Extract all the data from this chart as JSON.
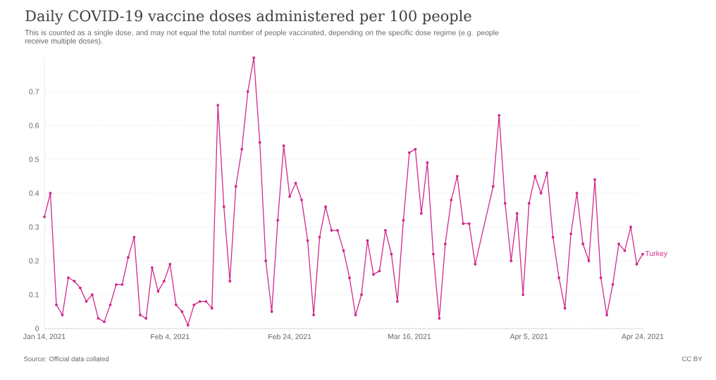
{
  "chart_data": {
    "type": "line",
    "title": "Daily COVID-19 vaccine doses administered per 100 people",
    "subtitle": "This is counted as a single dose, and may not equal the total number of people vaccinated, depending on the specific dose regime (e.g. people receive multiple doses).",
    "x": [
      "2021-01-14",
      "2021-01-15",
      "2021-01-16",
      "2021-01-17",
      "2021-01-18",
      "2021-01-19",
      "2021-01-20",
      "2021-01-21",
      "2021-01-22",
      "2021-01-23",
      "2021-01-24",
      "2021-01-25",
      "2021-01-26",
      "2021-01-27",
      "2021-01-28",
      "2021-01-29",
      "2021-01-30",
      "2021-01-31",
      "2021-02-01",
      "2021-02-02",
      "2021-02-03",
      "2021-02-04",
      "2021-02-05",
      "2021-02-06",
      "2021-02-07",
      "2021-02-08",
      "2021-02-09",
      "2021-02-10",
      "2021-02-11",
      "2021-02-12",
      "2021-02-13",
      "2021-02-14",
      "2021-02-15",
      "2021-02-16",
      "2021-02-17",
      "2021-02-18",
      "2021-02-19",
      "2021-02-20",
      "2021-02-21",
      "2021-02-22",
      "2021-02-23",
      "2021-02-24",
      "2021-02-25",
      "2021-02-26",
      "2021-02-27",
      "2021-02-28",
      "2021-03-01",
      "2021-03-02",
      "2021-03-03",
      "2021-03-04",
      "2021-03-05",
      "2021-03-06",
      "2021-03-07",
      "2021-03-08",
      "2021-03-09",
      "2021-03-10",
      "2021-03-11",
      "2021-03-12",
      "2021-03-13",
      "2021-03-14",
      "2021-03-15",
      "2021-03-16",
      "2021-03-17",
      "2021-03-18",
      "2021-03-19",
      "2021-03-20",
      "2021-03-21",
      "2021-03-22",
      "2021-03-23",
      "2021-03-24",
      "2021-03-25",
      "2021-03-26",
      "2021-03-27",
      "2021-03-30",
      "2021-03-31",
      "2021-04-01",
      "2021-04-02",
      "2021-04-03",
      "2021-04-04",
      "2021-04-05",
      "2021-04-06",
      "2021-04-07",
      "2021-04-08",
      "2021-04-09",
      "2021-04-10",
      "2021-04-11",
      "2021-04-12",
      "2021-04-13",
      "2021-04-14",
      "2021-04-15",
      "2021-04-16",
      "2021-04-17",
      "2021-04-18",
      "2021-04-19",
      "2021-04-20",
      "2021-04-21",
      "2021-04-22",
      "2021-04-23",
      "2021-04-24"
    ],
    "series": [
      {
        "name": "Turkey",
        "color": "#d02a8c",
        "values": [
          0.33,
          0.4,
          0.07,
          0.04,
          0.15,
          0.14,
          0.12,
          0.08,
          0.1,
          0.03,
          0.02,
          0.07,
          0.13,
          0.13,
          0.21,
          0.27,
          0.04,
          0.03,
          0.18,
          0.11,
          0.14,
          0.19,
          0.07,
          0.05,
          0.01,
          0.07,
          0.08,
          0.08,
          0.06,
          0.66,
          0.36,
          0.14,
          0.42,
          0.53,
          0.7,
          0.8,
          0.55,
          0.2,
          0.05,
          0.32,
          0.54,
          0.39,
          0.43,
          0.38,
          0.26,
          0.04,
          0.27,
          0.36,
          0.29,
          0.29,
          0.23,
          0.15,
          0.04,
          0.1,
          0.26,
          0.16,
          0.17,
          0.29,
          0.22,
          0.08,
          0.32,
          0.52,
          0.53,
          0.34,
          0.49,
          0.22,
          0.03,
          0.25,
          0.38,
          0.45,
          0.31,
          0.31,
          0.19,
          0.42,
          0.63,
          0.37,
          0.2,
          0.34,
          0.1,
          0.37,
          0.45,
          0.4,
          0.46,
          0.27,
          0.15,
          0.06,
          0.28,
          0.4,
          0.25,
          0.2,
          0.44,
          0.15,
          0.04,
          0.13,
          0.25,
          0.23,
          0.3,
          0.19,
          0.22
        ]
      }
    ],
    "xlim": [
      "2021-01-14",
      "2021-04-24"
    ],
    "xticks": [
      {
        "value": "2021-01-14",
        "label": "Jan 14, 2021"
      },
      {
        "value": "2021-02-04",
        "label": "Feb 4, 2021"
      },
      {
        "value": "2021-02-24",
        "label": "Feb 24, 2021"
      },
      {
        "value": "2021-03-16",
        "label": "Mar 16, 2021"
      },
      {
        "value": "2021-04-05",
        "label": "Apr 5, 2021"
      },
      {
        "value": "2021-04-24",
        "label": "Apr 24, 2021"
      }
    ],
    "ylim": [
      0,
      0.8
    ],
    "yticks": [
      0,
      0.1,
      0.2,
      0.3,
      0.4,
      0.5,
      0.6,
      0.7
    ],
    "grid": "y",
    "marker": "circle",
    "line_style": "solid",
    "annotations": [
      "Source: Official data collated",
      "CC BY"
    ]
  }
}
